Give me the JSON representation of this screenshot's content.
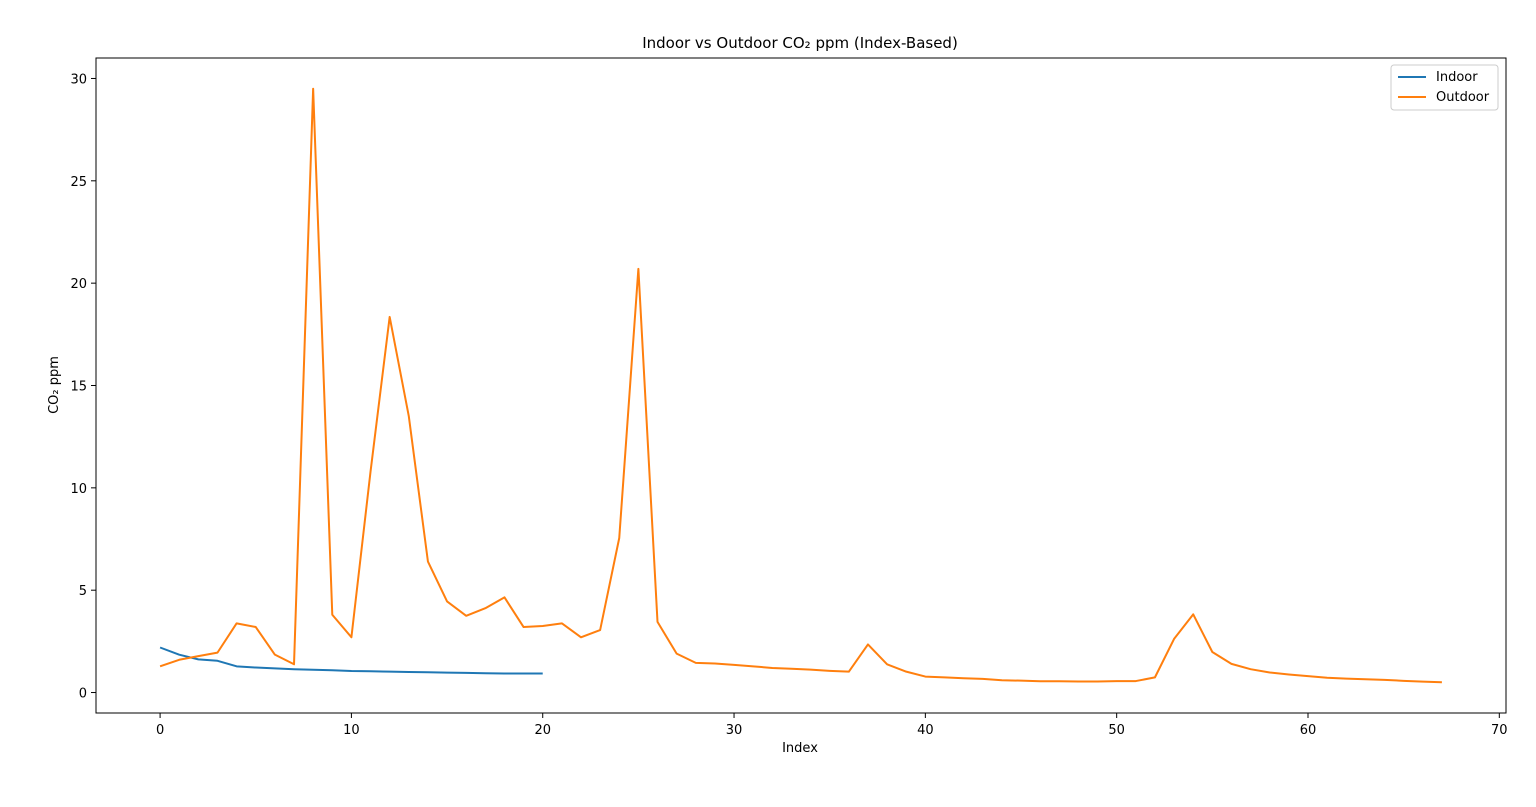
{
  "chart_data": {
    "type": "line",
    "title": "Indoor vs Outdoor CO₂ ppm (Index-Based)",
    "xlabel": "Index",
    "ylabel": "CO₂ ppm",
    "xlim": [
      -3.35,
      70.35
    ],
    "ylim": [
      -1.0,
      31.0
    ],
    "xticks": [
      0,
      10,
      20,
      30,
      40,
      50,
      60,
      70
    ],
    "yticks": [
      0,
      5,
      10,
      15,
      20,
      25,
      30
    ],
    "grid": false,
    "legend_position": "top-right",
    "series": [
      {
        "name": "Indoor",
        "color": "#1f77b4",
        "x": [
          0,
          1,
          2,
          3,
          4,
          5,
          6,
          7,
          8,
          9,
          10,
          11,
          12,
          13,
          14,
          15,
          16,
          17,
          18,
          19,
          20
        ],
        "values": [
          2.2,
          1.85,
          1.62,
          1.55,
          1.28,
          1.22,
          1.18,
          1.14,
          1.11,
          1.09,
          1.05,
          1.04,
          1.02,
          1.0,
          0.99,
          0.97,
          0.96,
          0.94,
          0.93,
          0.93,
          0.93
        ]
      },
      {
        "name": "Outdoor",
        "color": "#ff7f0e",
        "x": [
          0,
          1,
          2,
          3,
          4,
          5,
          6,
          7,
          8,
          9,
          10,
          11,
          12,
          13,
          14,
          15,
          16,
          17,
          18,
          19,
          20,
          21,
          22,
          23,
          24,
          25,
          26,
          27,
          28,
          29,
          30,
          31,
          32,
          33,
          34,
          35,
          36,
          37,
          38,
          39,
          40,
          41,
          42,
          43,
          44,
          45,
          46,
          47,
          48,
          49,
          50,
          51,
          52,
          53,
          54,
          55,
          56,
          57,
          58,
          59,
          60,
          61,
          62,
          63,
          64,
          65,
          66,
          67
        ],
        "values": [
          1.28,
          1.6,
          1.78,
          1.95,
          3.38,
          3.2,
          1.85,
          1.38,
          29.5,
          3.8,
          2.7,
          10.8,
          18.35,
          13.5,
          6.4,
          4.45,
          3.75,
          4.12,
          4.65,
          3.2,
          3.25,
          3.38,
          2.7,
          3.05,
          7.55,
          20.7,
          3.45,
          1.9,
          1.45,
          1.42,
          1.35,
          1.28,
          1.2,
          1.16,
          1.12,
          1.06,
          1.02,
          2.35,
          1.38,
          1.02,
          0.78,
          0.74,
          0.7,
          0.67,
          0.6,
          0.58,
          0.55,
          0.55,
          0.54,
          0.54,
          0.56,
          0.56,
          0.74,
          2.62,
          3.82,
          1.98,
          1.4,
          1.14,
          0.98,
          0.88,
          0.8,
          0.72,
          0.68,
          0.65,
          0.62,
          0.57,
          0.53,
          0.5
        ]
      }
    ]
  }
}
